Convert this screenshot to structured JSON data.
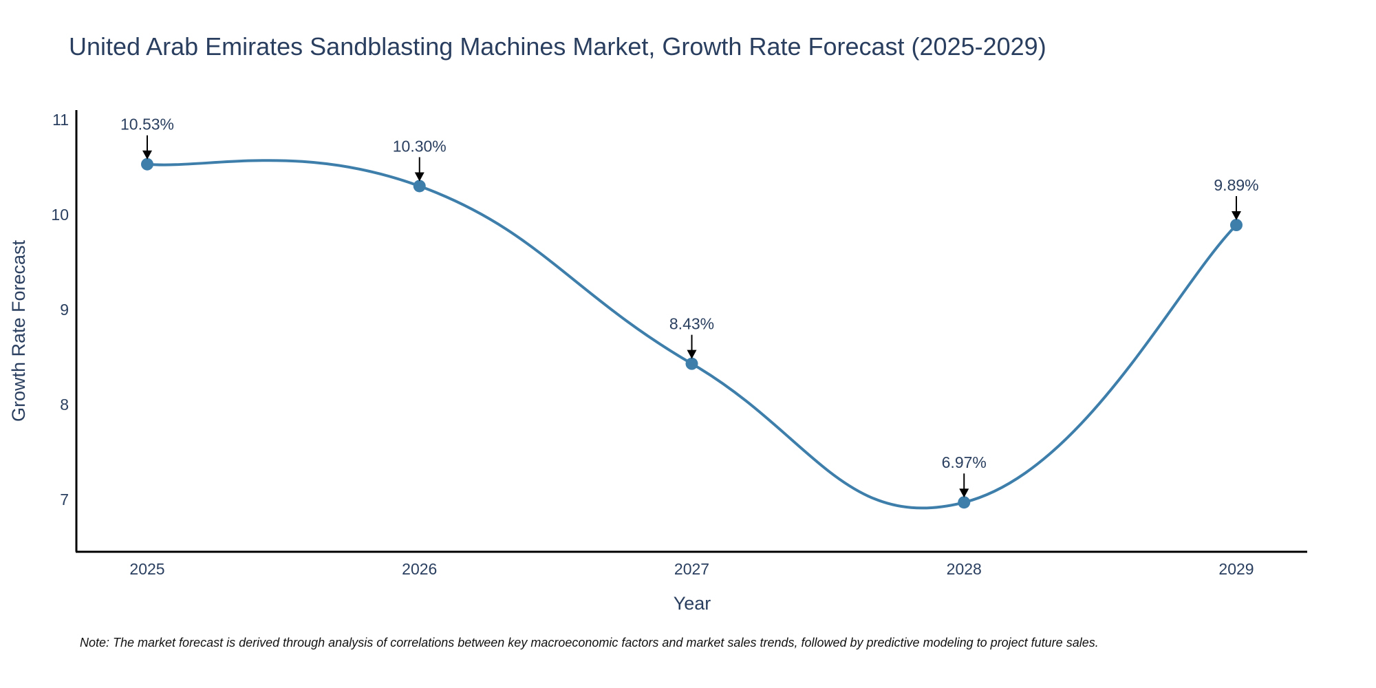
{
  "chart_data": {
    "type": "line",
    "title": "United Arab Emirates Sandblasting Machines Market, Growth Rate Forecast (2025-2029)",
    "xlabel": "Year",
    "ylabel": "Growth Rate Forecast",
    "categories": [
      "2025",
      "2026",
      "2027",
      "2028",
      "2029"
    ],
    "values": [
      10.53,
      10.3,
      8.43,
      6.97,
      9.89
    ],
    "data_labels": [
      "10.53%",
      "10.30%",
      "8.43%",
      "6.97%",
      "9.89%"
    ],
    "y_ticks": [
      "7",
      "8",
      "9",
      "10",
      "11"
    ],
    "ylim": [
      6.45,
      11.1
    ],
    "line_shape": "spline",
    "grid": false,
    "colors": {
      "line": "#3d7eab",
      "marker": "#3d7eab",
      "arrow": "#000000",
      "axis": "#000000"
    }
  },
  "note": "Note: The market forecast is derived through analysis of correlations between key macroeconomic factors and market sales trends, followed by predictive modeling to project future sales."
}
